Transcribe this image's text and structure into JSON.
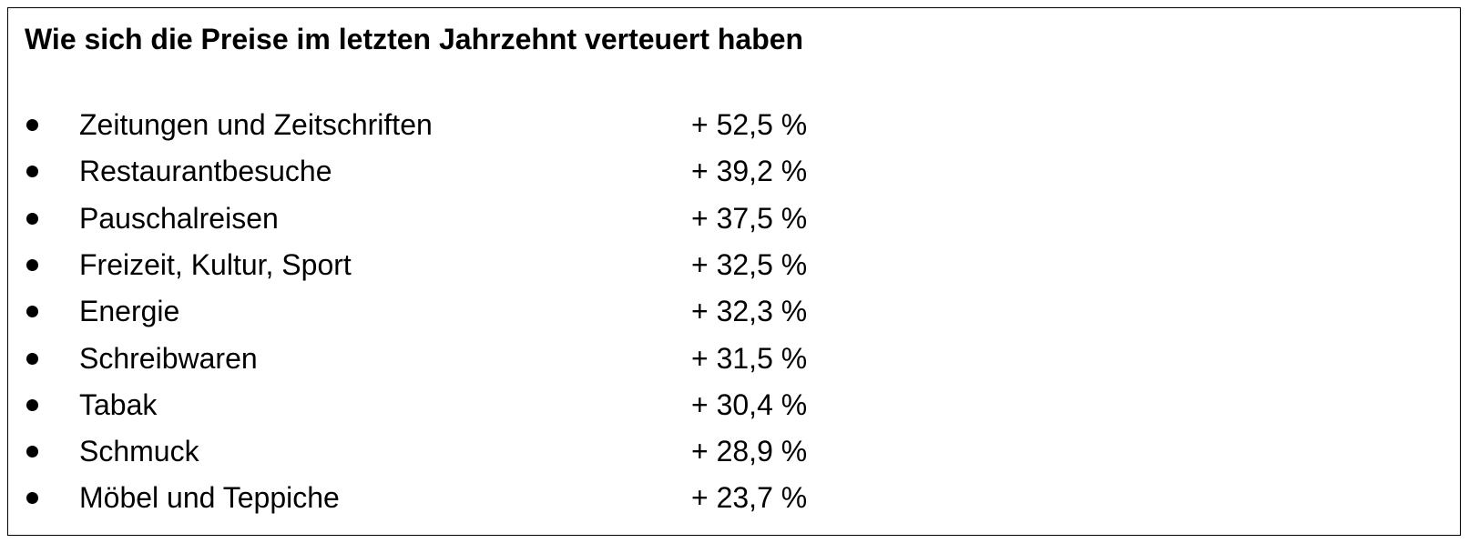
{
  "title": "Wie sich die Preise im letzten Jahrzehnt verteuert haben",
  "items": [
    {
      "label": "Zeitungen und Zeitschriften",
      "value": "+ 52,5 %"
    },
    {
      "label": "Restaurantbesuche",
      "value": "+ 39,2 %"
    },
    {
      "label": "Pauschalreisen",
      "value": "+ 37,5 %"
    },
    {
      "label": "Freizeit, Kultur, Sport",
      "value": "+ 32,5 %"
    },
    {
      "label": "Energie",
      "value": "+ 32,3 %"
    },
    {
      "label": "Schreibwaren",
      "value": "+ 31,5 %"
    },
    {
      "label": "Tabak",
      "value": "+ 30,4 %"
    },
    {
      "label": "Schmuck",
      "value": "+ 28,9 %"
    },
    {
      "label": "Möbel und Teppiche",
      "value": "+ 23,7 %"
    }
  ]
}
